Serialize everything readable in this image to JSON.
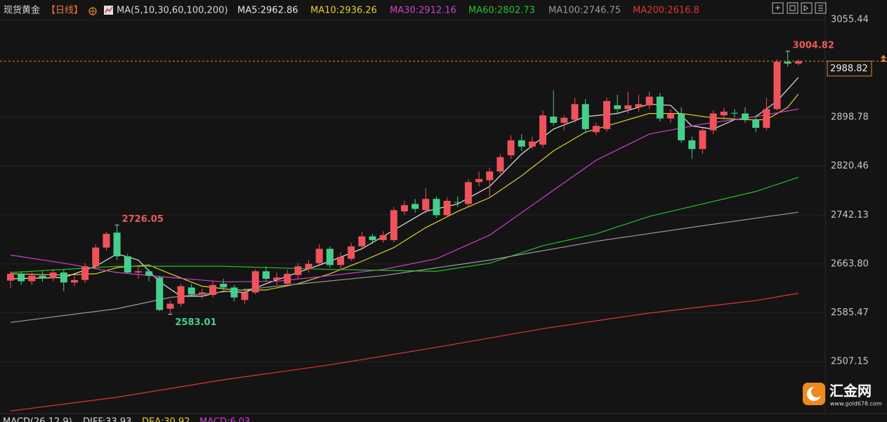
{
  "chart_data": {
    "type": "candlestick",
    "title": "现货黄金",
    "period": "【日线】",
    "indicator": "MA(5,10,30,60,100,200)",
    "up_color": "#f0525c",
    "down_color": "#45cf8c",
    "open": [
      2637,
      2648,
      2636,
      2645,
      2641,
      2650,
      2634,
      2638,
      2660,
      2690,
      2714,
      2676,
      2650,
      2652,
      2642,
      2592,
      2600,
      2626,
      2615,
      2614,
      2632,
      2626,
      2606,
      2618,
      2652,
      2638,
      2632,
      2646,
      2656,
      2665,
      2688,
      2662,
      2672,
      2692,
      2708,
      2702,
      2702,
      2748,
      2760,
      2750,
      2768,
      2742,
      2763,
      2760,
      2795,
      2798,
      2812,
      2838,
      2862,
      2852,
      2855,
      2900,
      2890,
      2895,
      2920,
      2875,
      2880,
      2918,
      2912,
      2915,
      2918,
      2932,
      2897,
      2905,
      2862,
      2848,
      2878,
      2902,
      2906,
      2905,
      2895,
      2882,
      2912,
      2988,
      2985
    ],
    "high": [
      2652,
      2652,
      2650,
      2652,
      2656,
      2655,
      2645,
      2665,
      2695,
      2715,
      2726.05,
      2680,
      2660,
      2655,
      2645,
      2605,
      2632,
      2632,
      2624,
      2636,
      2640,
      2630,
      2625,
      2655,
      2660,
      2650,
      2655,
      2665,
      2670,
      2695,
      2692,
      2682,
      2698,
      2715,
      2712,
      2716,
      2755,
      2765,
      2768,
      2785,
      2772,
      2770,
      2772,
      2800,
      2812,
      2818,
      2840,
      2870,
      2872,
      2868,
      2910,
      2942,
      2902,
      2930,
      2928,
      2890,
      2930,
      2935,
      2940,
      2935,
      2940,
      2938,
      2912,
      2915,
      2868,
      2882,
      2910,
      2914,
      2912,
      2915,
      2902,
      2930,
      2992,
      3004.82,
      2992
    ],
    "low": [
      2625,
      2630,
      2630,
      2635,
      2636,
      2620,
      2628,
      2633,
      2655,
      2685,
      2670,
      2648,
      2640,
      2636,
      2588,
      2583.01,
      2595,
      2612,
      2608,
      2610,
      2622,
      2604,
      2600,
      2615,
      2635,
      2630,
      2628,
      2640,
      2650,
      2660,
      2658,
      2656,
      2668,
      2688,
      2696,
      2698,
      2698,
      2742,
      2746,
      2745,
      2738,
      2738,
      2755,
      2756,
      2788,
      2772,
      2808,
      2832,
      2845,
      2848,
      2850,
      2885,
      2878,
      2890,
      2874,
      2870,
      2876,
      2905,
      2905,
      2908,
      2912,
      2892,
      2890,
      2858,
      2832,
      2840,
      2872,
      2895,
      2898,
      2890,
      2875,
      2878,
      2910,
      2980,
      2982
    ],
    "close": [
      2648,
      2636,
      2645,
      2641,
      2650,
      2634,
      2638,
      2660,
      2690,
      2712,
      2676,
      2650,
      2652,
      2645,
      2590,
      2600,
      2628,
      2615,
      2618,
      2630,
      2626,
      2610,
      2618,
      2652,
      2640,
      2642,
      2648,
      2660,
      2664,
      2688,
      2662,
      2675,
      2692,
      2708,
      2702,
      2710,
      2750,
      2758,
      2752,
      2768,
      2742,
      2765,
      2762,
      2795,
      2800,
      2812,
      2835,
      2862,
      2852,
      2860,
      2902,
      2890,
      2898,
      2920,
      2880,
      2885,
      2925,
      2912,
      2918,
      2920,
      2932,
      2897,
      2905,
      2862,
      2848,
      2878,
      2905,
      2908,
      2905,
      2895,
      2882,
      2912,
      2988,
      2985,
      2988.82
    ],
    "series": [
      {
        "name": "MA5:2962.86",
        "color": "#e6e6e6",
        "x": [
          0,
          5,
          8,
          10,
          12,
          14,
          16,
          18,
          20,
          22,
          24,
          27,
          30,
          33,
          36,
          39,
          42,
          45,
          48,
          51,
          54,
          57,
          60,
          62,
          64,
          66,
          68,
          70,
          72,
          74
        ],
        "values": [
          2640,
          2642,
          2660,
          2680,
          2670,
          2635,
          2612,
          2612,
          2620,
          2618,
          2632,
          2650,
          2668,
          2688,
          2718,
          2748,
          2760,
          2788,
          2840,
          2880,
          2900,
          2905,
          2920,
          2918,
          2885,
          2880,
          2895,
          2900,
          2925,
          2962.86
        ]
      },
      {
        "name": "MA10:2936.26",
        "color": "#e3cf2b",
        "x": [
          0,
          5,
          8,
          10,
          13,
          15,
          18,
          21,
          24,
          27,
          30,
          33,
          36,
          39,
          42,
          45,
          48,
          51,
          54,
          57,
          60,
          63,
          66,
          69,
          71,
          73,
          74
        ],
        "values": [
          2648,
          2646,
          2648,
          2658,
          2662,
          2648,
          2628,
          2622,
          2622,
          2632,
          2648,
          2668,
          2690,
          2722,
          2748,
          2770,
          2805,
          2845,
          2875,
          2890,
          2905,
          2905,
          2898,
          2895,
          2895,
          2915,
          2936.26
        ]
      },
      {
        "name": "MA30:2912.16",
        "color": "#d03fd4",
        "x": [
          0,
          5,
          10,
          15,
          20,
          25,
          30,
          35,
          40,
          45,
          50,
          55,
          60,
          65,
          70,
          74
        ],
        "values": [
          2678,
          2665,
          2650,
          2642,
          2635,
          2636,
          2645,
          2655,
          2672,
          2710,
          2770,
          2830,
          2872,
          2888,
          2900,
          2912.16
        ]
      },
      {
        "name": "MA60:2802.73",
        "color": "#23c323",
        "x": [
          0,
          10,
          20,
          30,
          40,
          45,
          50,
          55,
          60,
          65,
          70,
          74
        ],
        "values": [
          2650,
          2660,
          2660,
          2655,
          2652,
          2665,
          2693,
          2712,
          2740,
          2760,
          2780,
          2802.73
        ]
      },
      {
        "name": "MA100:2746.75",
        "color": "#9a9a9a",
        "x": [
          0,
          10,
          15,
          25,
          35,
          45,
          55,
          65,
          74
        ],
        "values": [
          2570,
          2592,
          2610,
          2628,
          2645,
          2670,
          2700,
          2725,
          2746.75
        ]
      },
      {
        "name": "MA200:2616.8",
        "color": "#e83434",
        "x": [
          0,
          10,
          20,
          30,
          40,
          50,
          60,
          70,
          74
        ],
        "values": [
          2428,
          2450,
          2478,
          2502,
          2530,
          2560,
          2585,
          2605,
          2616.8
        ]
      }
    ],
    "annotations": [
      {
        "x": 10,
        "y": 2726.05,
        "color": "#e85a5a"
      },
      {
        "x": 15,
        "y": 2583.01,
        "color": "#45cf8c"
      },
      {
        "x": 73,
        "y": 3004.82,
        "color": "#e85a5a"
      }
    ],
    "ylim": [
      2410.32,
      3086.96
    ],
    "yticks": [
      3055.44,
      2898.78,
      2820.46,
      2742.13,
      {
        "value": 2663.8,
        "label": "2663.80"
      },
      2585.47,
      2507.15
    ],
    "grid": true
  },
  "macd_header": [
    {
      "text": "MACD(26,12,9)",
      "color": "#d8d8d8"
    },
    {
      "text": "DIFF:33.93",
      "color": "#d8d8d8"
    },
    {
      "text": "DEA:30.92",
      "color": "#e3cf2b"
    },
    {
      "text": "MACD:6.03",
      "color": "#d03fd4"
    }
  ],
  "logo": {
    "name": "汇金网",
    "url": "www.gold678.com"
  }
}
